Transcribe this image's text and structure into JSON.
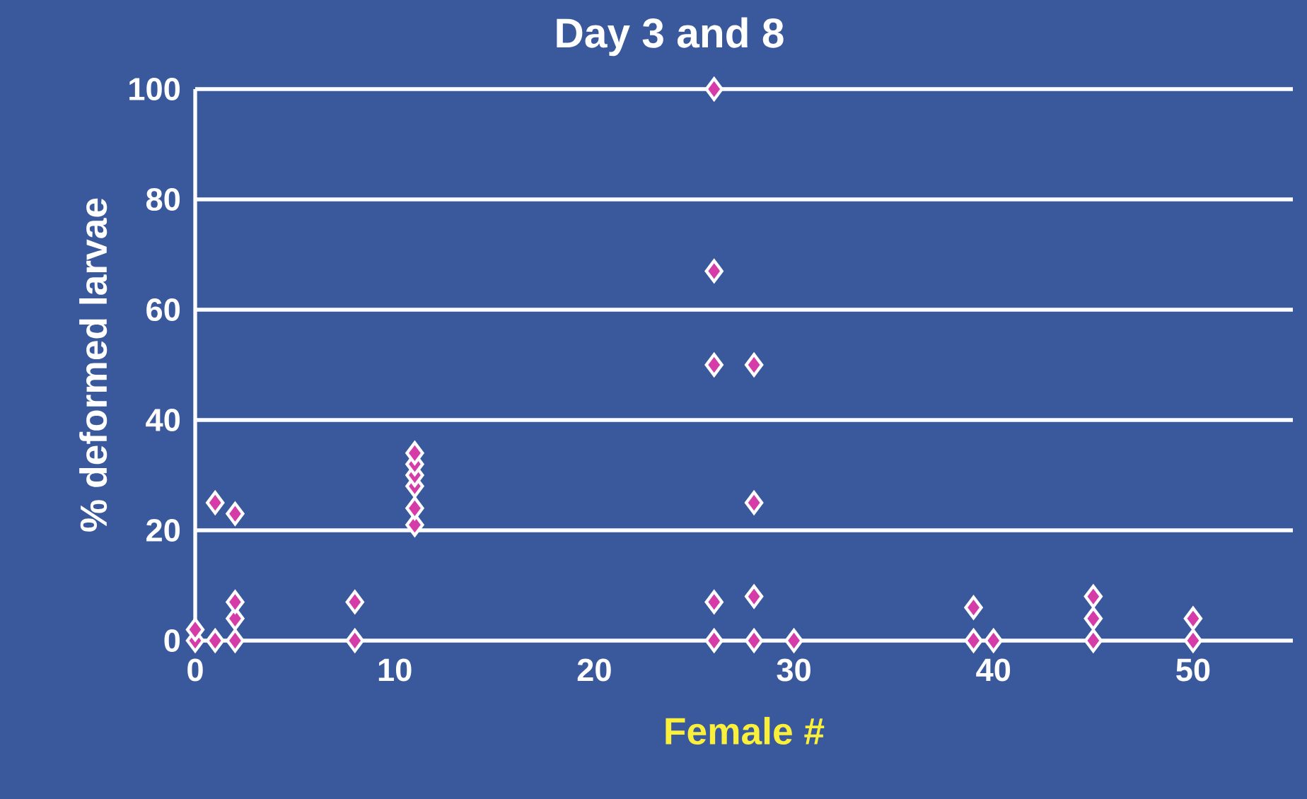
{
  "chart_data": {
    "type": "scatter",
    "title": "Day 3 and 8",
    "xlabel": "Female #",
    "ylabel": "% deformed larvae",
    "xlim": [
      0,
      55
    ],
    "ylim": [
      0,
      100
    ],
    "xticks": [
      0,
      10,
      20,
      30,
      40,
      50
    ],
    "yticks": [
      0,
      20,
      40,
      60,
      80,
      100
    ],
    "grid": "y",
    "marker": "diamond",
    "series": [
      {
        "color": "#d63ca8",
        "x": [
          0,
          0,
          1,
          1,
          2,
          2,
          2,
          2,
          8,
          8,
          11,
          11,
          11,
          11,
          11,
          11,
          26,
          26,
          26,
          26,
          26,
          28,
          28,
          28,
          28,
          30,
          39,
          39,
          40,
          45,
          45,
          45,
          50,
          50
        ],
        "values": [
          0,
          2,
          0,
          25,
          0,
          4,
          7,
          23,
          0,
          7,
          21,
          24,
          28,
          30,
          32,
          34,
          0,
          7,
          50,
          67,
          100,
          0,
          8,
          25,
          50,
          0,
          0,
          6,
          0,
          0,
          4,
          8,
          0,
          4
        ]
      }
    ]
  }
}
